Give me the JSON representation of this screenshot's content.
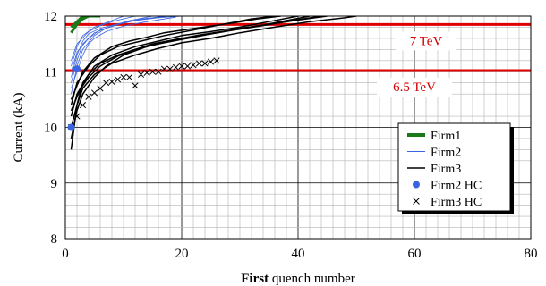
{
  "chart_data": {
    "type": "line",
    "title": "",
    "xlabel_bold": "First",
    "xlabel_rest": " quench number",
    "ylabel": "Current (kA)",
    "xlim": [
      0,
      80
    ],
    "ylim": [
      8,
      12
    ],
    "x_ticks": [
      "0",
      "20",
      "40",
      "60",
      "80"
    ],
    "y_ticks": [
      "8",
      "9",
      "10",
      "11",
      "12"
    ],
    "grid": true,
    "legend_position": "right",
    "colors": {
      "firm1": "#1a7a1a",
      "firm2": "#3a64e0",
      "firm3": "#000000",
      "ref": "#e00000"
    },
    "reference_lines": [
      {
        "y": 11.85,
        "label": "7 TeV",
        "label_x": 62
      },
      {
        "y": 11.02,
        "label": "6.5 TeV",
        "label_x": 60
      }
    ],
    "legend": [
      {
        "name": "Firm1",
        "kind": "line",
        "key": "firm1"
      },
      {
        "name": "Firm2",
        "kind": "line",
        "key": "firm2"
      },
      {
        "name": "Firm3",
        "kind": "line",
        "key": "firm3"
      },
      {
        "name": "Firm2 HC",
        "kind": "dot",
        "key": "firm2"
      },
      {
        "name": "Firm3 HC",
        "kind": "cross",
        "key": "firm3"
      }
    ],
    "series": [
      {
        "name": "Firm1",
        "key": "firm1",
        "width": 3,
        "x": [
          1,
          2,
          3,
          4,
          5,
          6
        ],
        "y": [
          11.7,
          11.85,
          11.95,
          12.0,
          12.0,
          12.0
        ]
      },
      {
        "name": "Firm1",
        "key": "firm1",
        "width": 3,
        "x": [
          1,
          2,
          3,
          4
        ],
        "y": [
          11.8,
          11.9,
          12.0,
          12.0
        ]
      },
      {
        "name": "Firm2",
        "key": "firm2",
        "width": 0.8,
        "x": [
          1,
          2,
          4,
          6,
          9,
          12,
          16,
          20
        ],
        "y": [
          11.0,
          11.35,
          11.6,
          11.75,
          11.85,
          11.92,
          11.97,
          12.0
        ]
      },
      {
        "name": "Firm2",
        "key": "firm2",
        "width": 0.8,
        "x": [
          1,
          2,
          3,
          5,
          8,
          11,
          15
        ],
        "y": [
          10.8,
          11.2,
          11.5,
          11.7,
          11.82,
          11.92,
          12.0
        ]
      },
      {
        "name": "Firm2",
        "key": "firm2",
        "width": 0.8,
        "x": [
          1,
          2,
          3,
          5,
          7,
          10,
          13,
          18
        ],
        "y": [
          10.6,
          11.1,
          11.4,
          11.65,
          11.78,
          11.88,
          11.95,
          12.0
        ]
      },
      {
        "name": "Firm2",
        "key": "firm2",
        "width": 0.8,
        "x": [
          1,
          2,
          4,
          6,
          8,
          12
        ],
        "y": [
          11.2,
          11.5,
          11.72,
          11.83,
          11.9,
          12.0
        ]
      },
      {
        "name": "Firm2",
        "key": "firm2",
        "width": 0.8,
        "x": [
          1,
          2,
          3,
          4,
          6,
          9,
          13,
          17
        ],
        "y": [
          10.9,
          11.3,
          11.55,
          11.68,
          11.78,
          11.86,
          11.94,
          12.0
        ]
      },
      {
        "name": "Firm2",
        "key": "firm2",
        "width": 0.8,
        "x": [
          1,
          2,
          3,
          5,
          8,
          10
        ],
        "y": [
          11.1,
          11.45,
          11.65,
          11.8,
          11.92,
          12.0
        ]
      },
      {
        "name": "Firm2",
        "key": "firm2",
        "width": 0.8,
        "x": [
          1,
          2,
          3,
          4,
          5,
          7,
          10,
          14,
          19
        ],
        "y": [
          10.7,
          11.0,
          11.3,
          11.5,
          11.6,
          11.72,
          11.82,
          11.9,
          11.98
        ]
      },
      {
        "name": "Firm3",
        "key": "firm3",
        "width": 1.5,
        "x": [
          1,
          2,
          3,
          5,
          8,
          12,
          16,
          20,
          25,
          30,
          35,
          40
        ],
        "y": [
          9.6,
          10.4,
          10.8,
          11.1,
          11.3,
          11.45,
          11.55,
          11.65,
          11.72,
          11.8,
          11.9,
          12.0
        ]
      },
      {
        "name": "Firm3",
        "key": "firm3",
        "width": 1.5,
        "x": [
          1,
          2,
          4,
          6,
          9,
          12,
          15,
          19,
          23,
          28,
          33,
          38,
          42
        ],
        "y": [
          10.2,
          10.6,
          10.95,
          11.15,
          11.3,
          11.4,
          11.5,
          11.58,
          11.66,
          11.74,
          11.82,
          11.92,
          12.0
        ]
      },
      {
        "name": "Firm3",
        "key": "firm3",
        "width": 1.5,
        "x": [
          1,
          2,
          3,
          5,
          7,
          10,
          14,
          18,
          22,
          26,
          30,
          35,
          40,
          45
        ],
        "y": [
          9.8,
          10.3,
          10.6,
          10.9,
          11.1,
          11.3,
          11.45,
          11.55,
          11.62,
          11.7,
          11.78,
          11.85,
          11.93,
          12.0
        ]
      },
      {
        "name": "Firm3",
        "key": "firm3",
        "width": 1.5,
        "x": [
          1,
          3,
          5,
          8,
          11,
          14,
          17,
          21,
          25,
          29,
          33,
          37
        ],
        "y": [
          10.5,
          11.0,
          11.25,
          11.45,
          11.55,
          11.62,
          11.7,
          11.76,
          11.82,
          11.88,
          11.95,
          12.0
        ]
      },
      {
        "name": "Firm3",
        "key": "firm3",
        "width": 1.5,
        "x": [
          1,
          2,
          3,
          5,
          8,
          12,
          16,
          20,
          25,
          30,
          36,
          42,
          48,
          50
        ],
        "y": [
          10.0,
          10.4,
          10.7,
          10.95,
          11.15,
          11.3,
          11.42,
          11.52,
          11.6,
          11.7,
          11.8,
          11.9,
          11.97,
          12.0
        ]
      },
      {
        "name": "Firm3",
        "key": "firm3",
        "width": 1.5,
        "x": [
          1,
          2,
          4,
          6,
          9,
          13,
          17,
          22,
          27,
          32,
          36
        ],
        "y": [
          10.4,
          10.8,
          11.1,
          11.3,
          11.45,
          11.55,
          11.65,
          11.75,
          11.85,
          11.95,
          12.0
        ]
      },
      {
        "name": "Firm3",
        "key": "firm3",
        "width": 1.5,
        "x": [
          1,
          2,
          3,
          4,
          6,
          9,
          12,
          16,
          20,
          24,
          29,
          34,
          39,
          44
        ],
        "y": [
          10.3,
          10.55,
          10.75,
          10.9,
          11.1,
          11.28,
          11.4,
          11.5,
          11.58,
          11.66,
          11.75,
          11.83,
          11.92,
          12.0
        ]
      }
    ],
    "firm2_hc": {
      "x": [
        1,
        2
      ],
      "y": [
        10.0,
        11.05
      ]
    },
    "firm3_hc": {
      "x": [
        1,
        2,
        3,
        4,
        5,
        6,
        7,
        8,
        9,
        10,
        11,
        12,
        13,
        14,
        15,
        16,
        17,
        18,
        19,
        20,
        21,
        22,
        23,
        24,
        25,
        26
      ],
      "y": [
        10.0,
        10.2,
        10.4,
        10.55,
        10.62,
        10.7,
        10.8,
        10.82,
        10.86,
        10.9,
        10.9,
        10.75,
        10.95,
        10.98,
        11.0,
        11.0,
        11.05,
        11.05,
        11.08,
        11.1,
        11.1,
        11.12,
        11.15,
        11.15,
        11.18,
        11.2
      ]
    }
  }
}
